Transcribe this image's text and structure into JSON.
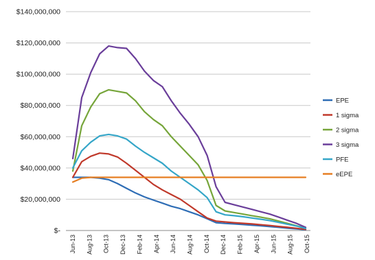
{
  "chart_data": {
    "type": "line",
    "title": "",
    "xlabel": "",
    "ylabel": "",
    "ylim": [
      0,
      140000000
    ],
    "y_ticks": [
      {
        "value": 0,
        "label": "$-"
      },
      {
        "value": 20000000,
        "label": "$20,000,000"
      },
      {
        "value": 40000000,
        "label": "$40,000,000"
      },
      {
        "value": 60000000,
        "label": "$60,000,000"
      },
      {
        "value": 80000000,
        "label": "$80,000,000"
      },
      {
        "value": 100000000,
        "label": "$100,000,000"
      },
      {
        "value": 120000000,
        "label": "$120,000,000"
      },
      {
        "value": 140000000,
        "label": "$140,000,000"
      }
    ],
    "grid": "horizontal",
    "legend_position": "right",
    "x_labels": [
      "Jun-13",
      "Aug-13",
      "Oct-13",
      "Dec-13",
      "Feb-14",
      "Apr-14",
      "Jun-14",
      "Aug-14",
      "Oct-14",
      "Dec-14",
      "Feb-15",
      "Apr-15",
      "Jun-15",
      "Aug-15",
      "Oct-15"
    ],
    "series": [
      {
        "name": "EPE",
        "color": "#2e6db5",
        "values": [
          34000000,
          34000000,
          34000000,
          33500000,
          32500000,
          30000000,
          27000000,
          24000000,
          21500000,
          19500000,
          17500000,
          15500000,
          14000000,
          12000000,
          10000000,
          7500000,
          5000000,
          4500000,
          4200000,
          3800000,
          3400000,
          3000000,
          2500000,
          2000000,
          1500000,
          1000000,
          500000
        ]
      },
      {
        "name": "1 sigma",
        "color": "#c0392b",
        "values": [
          34000000,
          44000000,
          47500000,
          49500000,
          49000000,
          47000000,
          43000000,
          38500000,
          34000000,
          29500000,
          26000000,
          23000000,
          20000000,
          16000000,
          12000000,
          8000000,
          6000000,
          5500000,
          5000000,
          4600000,
          4200000,
          3700000,
          3200000,
          2600000,
          2000000,
          1400000,
          700000
        ]
      },
      {
        "name": "2 sigma",
        "color": "#76a53a",
        "values": [
          38000000,
          67000000,
          79000000,
          87500000,
          90000000,
          89000000,
          88000000,
          83000000,
          76000000,
          71000000,
          67000000,
          60000000,
          54000000,
          48000000,
          42000000,
          32000000,
          16000000,
          12500000,
          11500000,
          10500000,
          9500000,
          8500000,
          7500000,
          6000000,
          4500000,
          3000000,
          1500000
        ]
      },
      {
        "name": "3 sigma",
        "color": "#6a3e9a",
        "values": [
          46000000,
          85000000,
          101000000,
          113000000,
          118000000,
          117000000,
          116500000,
          110000000,
          102000000,
          96000000,
          92000000,
          83000000,
          75000000,
          68000000,
          60000000,
          48000000,
          28000000,
          18000000,
          16500000,
          15000000,
          13500000,
          12000000,
          10500000,
          8500000,
          6500000,
          4500000,
          2000000
        ]
      },
      {
        "name": "PFE",
        "color": "#35a6c8",
        "values": [
          40000000,
          51000000,
          56500000,
          60500000,
          61500000,
          60500000,
          58500000,
          54000000,
          50000000,
          46500000,
          43000000,
          38000000,
          34000000,
          30000000,
          26000000,
          21000000,
          12000000,
          10000000,
          9500000,
          8800000,
          8000000,
          7200000,
          6300000,
          5200000,
          4000000,
          2800000,
          1300000
        ]
      },
      {
        "name": "eEPE",
        "color": "#e67e22",
        "values": [
          31000000,
          33500000,
          34000000,
          34000000,
          34000000,
          34000000,
          34000000,
          34000000,
          34000000,
          34000000,
          34000000,
          34000000,
          34000000,
          34000000,
          34000000,
          34000000,
          34000000,
          34000000,
          34000000,
          34000000,
          34000000,
          34000000,
          34000000,
          34000000,
          34000000,
          34000000,
          34000000
        ]
      }
    ]
  }
}
